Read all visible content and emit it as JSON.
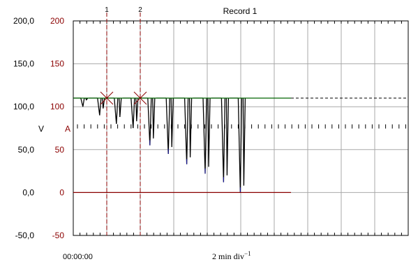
{
  "chart_data": {
    "type": "line",
    "title": "Record 1",
    "xlabel": "2 min div",
    "xlabel_exponent": "−1",
    "time_origin": "00:00:00",
    "xlim": [
      0,
      20
    ],
    "ylim": [
      -50,
      200
    ],
    "y_ticks_V": [
      "200,0",
      "150,0",
      "100,0",
      "50,0",
      "0,0",
      "-50,0"
    ],
    "y_ticks_A": [
      "200",
      "150",
      "100",
      "50",
      "0",
      "-50"
    ],
    "y_ticks_values": [
      200,
      150,
      100,
      50,
      0,
      -50
    ],
    "y_unit_left": "V",
    "y_unit_right": "A",
    "grid": true,
    "cursors": [
      {
        "label": "1",
        "x": 2
      },
      {
        "label": "2",
        "x": 4
      }
    ],
    "series": [
      {
        "color": "#000000",
        "baseline": 110,
        "dips": [
          {
            "x": 0.7,
            "min": 100
          },
          {
            "x": 1.7,
            "min": 90
          },
          {
            "x": 2.7,
            "min": 80
          },
          {
            "x": 3.7,
            "min": 75
          },
          {
            "x": 4.7,
            "min": 55
          },
          {
            "x": 5.8,
            "min": 45
          },
          {
            "x": 6.9,
            "min": 33
          },
          {
            "x": 8.0,
            "min": 22
          },
          {
            "x": 9.1,
            "min": 12
          },
          {
            "x": 10.1,
            "min": 0
          }
        ]
      },
      {
        "color": "#006400",
        "level": 110,
        "x_end": 13.0,
        "continues_dashed": true
      },
      {
        "color": "#8b0000",
        "level": 0,
        "x_end": 13.0
      },
      {
        "color": "#000000",
        "style": "dotted-ticks",
        "level": 77
      }
    ]
  },
  "colors": {
    "grid": "#a9a9a9",
    "cursor": "#8b0000",
    "trace": "#000000",
    "voltage_ref": "#006400",
    "current": "#8b0000",
    "blue_accent": "#1a1aa8"
  }
}
